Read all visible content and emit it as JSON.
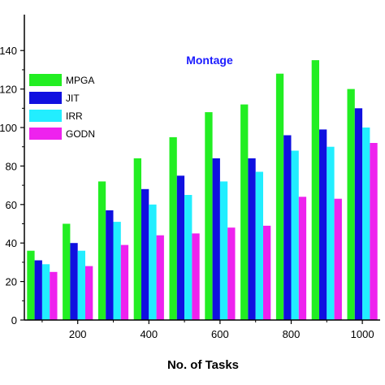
{
  "chart_data": {
    "type": "bar",
    "title": "Montage",
    "title_color": "#1c1cff",
    "xlabel": "No. of Tasks",
    "ylabel": "",
    "x": [
      100,
      200,
      300,
      400,
      500,
      600,
      700,
      800,
      900,
      1000
    ],
    "x_tick_labels": [
      "200",
      "400",
      "600",
      "800",
      "1000"
    ],
    "x_tick_values": [
      200,
      400,
      600,
      800,
      1000
    ],
    "y_tick_labels": [
      "0",
      "20",
      "40",
      "60",
      "80",
      "100",
      "120",
      "140"
    ],
    "y_tick_values": [
      0,
      20,
      40,
      60,
      80,
      100,
      120,
      140
    ],
    "ylim": [
      0,
      146
    ],
    "xlim": [
      50,
      1050
    ],
    "grid": false,
    "legend_position": "top-left",
    "series": [
      {
        "name": "MPGA",
        "color": "#22ee22",
        "values": [
          36,
          50,
          72,
          84,
          95,
          108,
          112,
          128,
          135,
          120
        ]
      },
      {
        "name": "JIT",
        "color": "#1010e0",
        "values": [
          31,
          40,
          57,
          68,
          75,
          84,
          84,
          96,
          99,
          110
        ]
      },
      {
        "name": "IRR",
        "color": "#22eeff",
        "values": [
          29,
          36,
          51,
          60,
          65,
          72,
          77,
          88,
          90,
          100
        ]
      },
      {
        "name": "GODN",
        "color": "#ee22ee",
        "values": [
          25,
          28,
          39,
          44,
          45,
          48,
          49,
          64,
          63,
          92
        ]
      }
    ]
  }
}
